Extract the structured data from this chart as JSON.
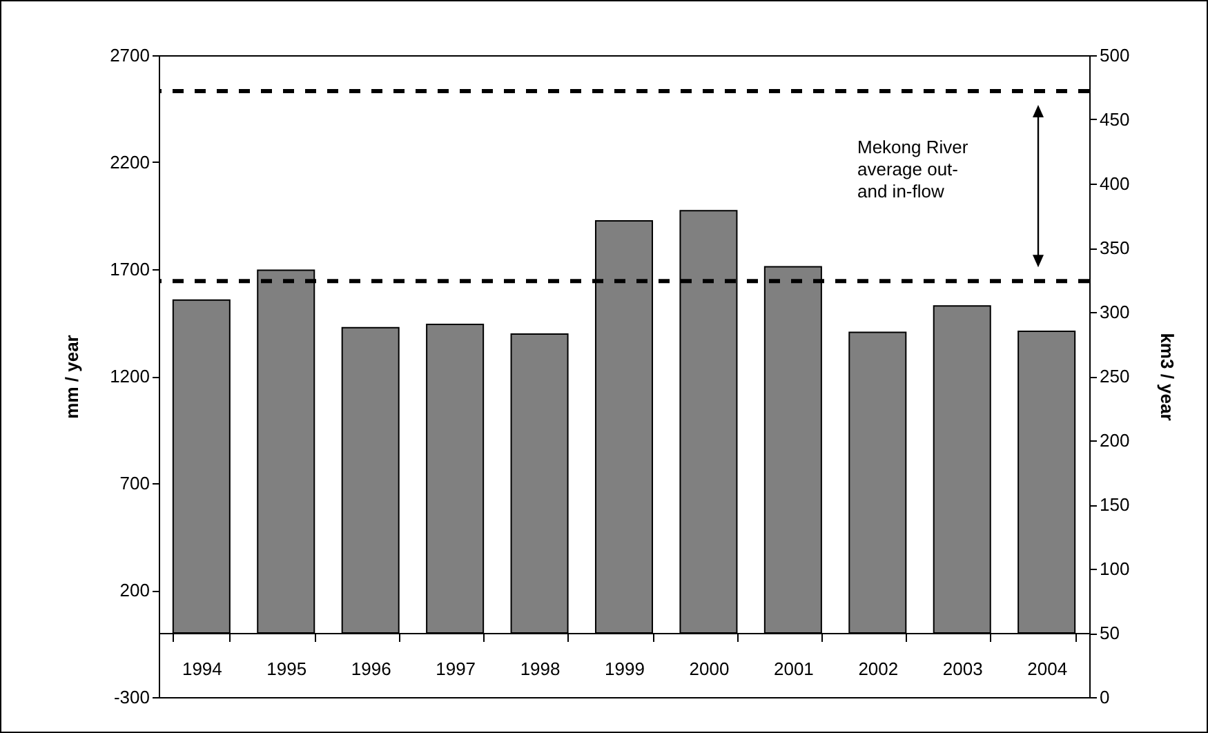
{
  "chart_data": {
    "type": "bar",
    "ylabel": "mm / year",
    "y2label": "km3 / year",
    "categories": [
      "1994",
      "1995",
      "1996",
      "1997",
      "1998",
      "1999",
      "2000",
      "2001",
      "2002",
      "2003",
      "2004"
    ],
    "values": [
      1556,
      1695,
      1427,
      1442,
      1397,
      1926,
      1973,
      1711,
      1405,
      1528,
      1410
    ],
    "color": "#808080",
    "ylim": [
      -300,
      2700
    ],
    "yticks": [
      -300,
      200,
      700,
      1200,
      1700,
      2200,
      2700
    ],
    "y2lim": [
      0,
      500
    ],
    "y2ticks": [
      0,
      50,
      100,
      150,
      200,
      250,
      300,
      350,
      400,
      450,
      500
    ],
    "ref_lines": [
      {
        "axis": "y2",
        "value": 472,
        "line_style": "dashed",
        "color": "#000000"
      },
      {
        "axis": "y2",
        "value": 324,
        "line_style": "dashed",
        "color": "#000000"
      }
    ],
    "annotations": [
      "Mekong River average out- and in-flow"
    ]
  }
}
